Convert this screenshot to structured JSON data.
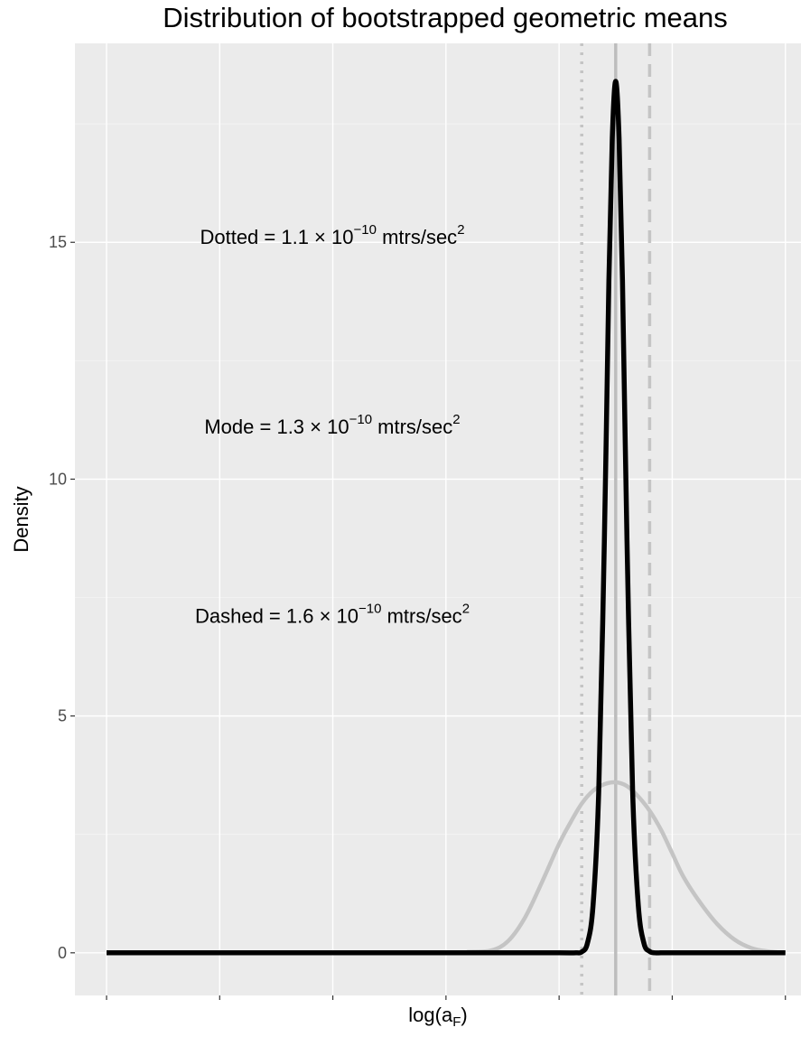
{
  "chart_data": {
    "type": "line",
    "title": "Distribution of bootstrapped geometric means",
    "xlabel_main": "log(a",
    "xlabel_sub": "F",
    "xlabel_close": ")",
    "ylabel": "Density",
    "x_ticks_labeled": false,
    "xlim": [
      0,
      6
    ],
    "ylim": [
      -0.9,
      19.2
    ],
    "y_ticks": [
      0,
      5,
      10,
      15
    ],
    "grid": true,
    "reference_lines": [
      {
        "name": "Dotted",
        "x": 4.2,
        "style": "dotted",
        "color": "#c4c4c4"
      },
      {
        "name": "Mode",
        "x": 4.5,
        "style": "solid",
        "color": "#bdbdbd"
      },
      {
        "name": "Dashed",
        "x": 4.8,
        "style": "dashed",
        "color": "#c4c4c4"
      }
    ],
    "annotations": [
      {
        "label": "Dotted",
        "base": "1.1",
        "exponent": "−10",
        "sup_unit": "2"
      },
      {
        "label": "Mode",
        "base": "1.3",
        "exponent": "−10",
        "sup_unit": "2"
      },
      {
        "label": "Dashed",
        "base": "1.6",
        "exponent": "−10",
        "sup_unit": "2"
      }
    ],
    "annotation_parts": {
      "times": "× 10",
      "unit": "mtrs/sec",
      "equals": "="
    },
    "series": [
      {
        "color": "#000000",
        "x": [
          0,
          3.5,
          4.0,
          4.15,
          4.2,
          4.25,
          4.3,
          4.35,
          4.4,
          4.44,
          4.47,
          4.5,
          4.53,
          4.56,
          4.6,
          4.65,
          4.7,
          4.75,
          4.8,
          4.85,
          4.9,
          5.0,
          6.0
        ],
        "values": [
          0,
          0,
          0,
          0,
          0.02,
          0.2,
          1.0,
          3.4,
          8.7,
          14.2,
          17.2,
          18.4,
          17.2,
          14.2,
          8.7,
          3.4,
          1.0,
          0.2,
          0.03,
          0,
          0,
          0,
          0
        ]
      },
      {
        "color": "#c4c4c4",
        "x": [
          0,
          3.0,
          3.2,
          3.4,
          3.55,
          3.7,
          3.85,
          4.0,
          4.1,
          4.2,
          4.3,
          4.4,
          4.5,
          4.6,
          4.7,
          4.8,
          4.9,
          5.0,
          5.1,
          5.25,
          5.4,
          5.55,
          5.7,
          5.85,
          6.0
        ],
        "values": [
          0,
          0,
          0.02,
          0.05,
          0.25,
          0.75,
          1.5,
          2.3,
          2.75,
          3.15,
          3.42,
          3.56,
          3.6,
          3.52,
          3.3,
          3.0,
          2.6,
          2.1,
          1.6,
          1.05,
          0.6,
          0.28,
          0.1,
          0.03,
          0
        ]
      }
    ]
  }
}
